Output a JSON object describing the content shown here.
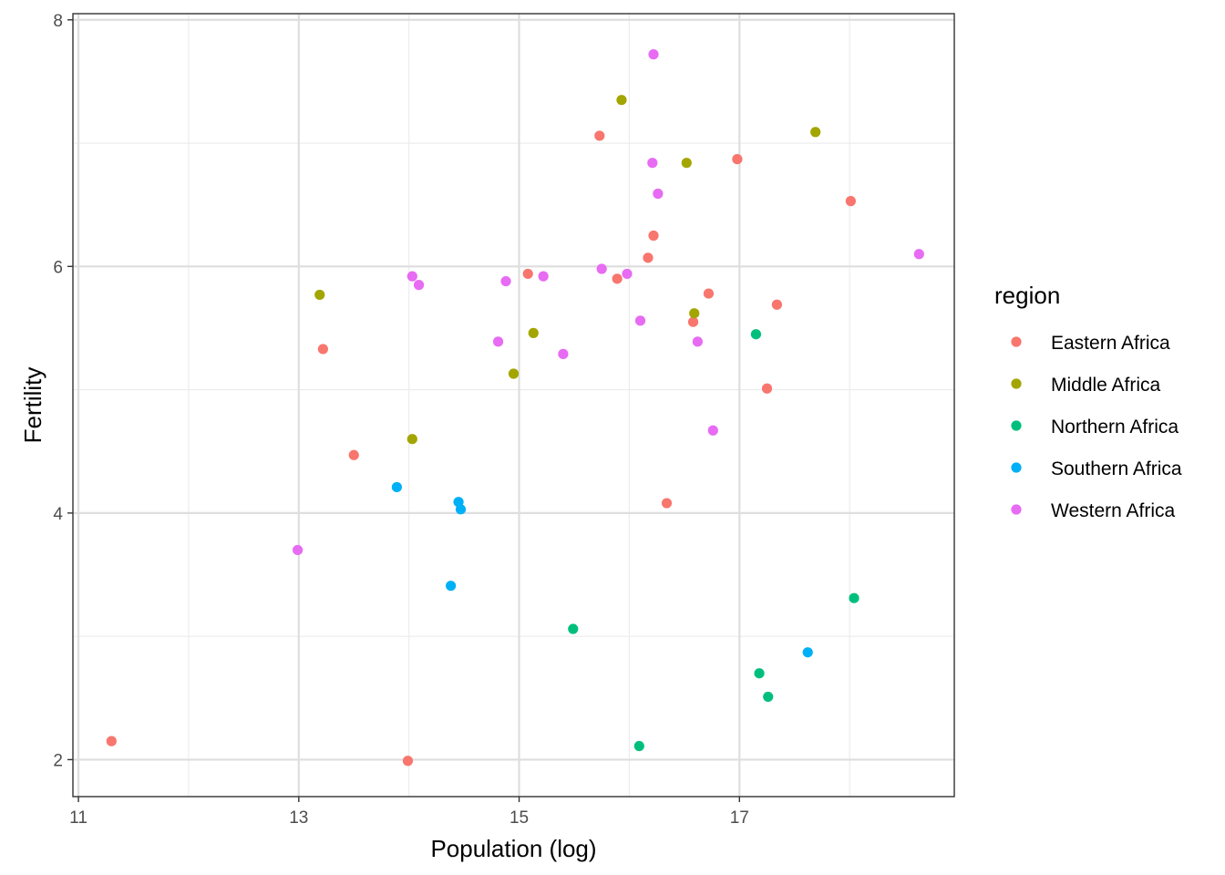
{
  "chart_data": {
    "type": "scatter",
    "xlabel": "Population (log)",
    "ylabel": "Fertility",
    "xlim": [
      10.95,
      18.95
    ],
    "ylim": [
      1.7,
      8.05
    ],
    "x_ticks": [
      11,
      13,
      15,
      17
    ],
    "x_tick_labels": [
      "11",
      "13",
      "15",
      "17"
    ],
    "y_ticks": [
      2,
      4,
      6,
      8
    ],
    "y_tick_labels": [
      "2",
      "4",
      "6",
      "8"
    ],
    "x_minor_grid": [
      12,
      14,
      16,
      18
    ],
    "y_minor_grid": [
      3,
      5,
      7
    ],
    "grid": true,
    "legend_title": "region",
    "legend_position": "right",
    "series": [
      {
        "name": "Eastern Africa",
        "color": "#F8766D",
        "points": [
          [
            11.3,
            2.15
          ],
          [
            13.99,
            1.99
          ],
          [
            13.22,
            5.33
          ],
          [
            13.5,
            4.47
          ],
          [
            15.08,
            5.94
          ],
          [
            15.73,
            7.06
          ],
          [
            15.89,
            5.9
          ],
          [
            16.17,
            6.07
          ],
          [
            16.22,
            6.25
          ],
          [
            16.34,
            4.08
          ],
          [
            16.58,
            5.55
          ],
          [
            16.72,
            5.78
          ],
          [
            16.98,
            6.87
          ],
          [
            17.25,
            5.01
          ],
          [
            17.34,
            5.69
          ],
          [
            18.01,
            6.53
          ]
        ]
      },
      {
        "name": "Middle Africa",
        "color": "#A3A500",
        "points": [
          [
            13.19,
            5.77
          ],
          [
            14.03,
            4.6
          ],
          [
            14.95,
            5.13
          ],
          [
            15.13,
            5.46
          ],
          [
            15.93,
            7.35
          ],
          [
            16.52,
            6.84
          ],
          [
            16.59,
            5.62
          ],
          [
            17.69,
            7.09
          ]
        ]
      },
      {
        "name": "Northern Africa",
        "color": "#00BF7D",
        "points": [
          [
            15.49,
            3.06
          ],
          [
            16.09,
            2.11
          ],
          [
            17.15,
            5.45
          ],
          [
            17.18,
            2.7
          ],
          [
            17.26,
            2.51
          ],
          [
            18.04,
            3.31
          ]
        ]
      },
      {
        "name": "Southern Africa",
        "color": "#00B0F6",
        "points": [
          [
            13.89,
            4.21
          ],
          [
            14.38,
            3.41
          ],
          [
            14.45,
            4.09
          ],
          [
            14.47,
            4.03
          ],
          [
            17.62,
            2.87
          ]
        ]
      },
      {
        "name": "Western Africa",
        "color": "#E76BF3",
        "points": [
          [
            12.99,
            3.7
          ],
          [
            14.03,
            5.92
          ],
          [
            14.09,
            5.85
          ],
          [
            14.81,
            5.39
          ],
          [
            14.88,
            5.88
          ],
          [
            15.22,
            5.92
          ],
          [
            15.4,
            5.29
          ],
          [
            15.75,
            5.98
          ],
          [
            15.98,
            5.94
          ],
          [
            16.1,
            5.56
          ],
          [
            16.21,
            6.84
          ],
          [
            16.22,
            7.72
          ],
          [
            16.26,
            6.59
          ],
          [
            16.62,
            5.39
          ],
          [
            16.76,
            4.67
          ],
          [
            18.63,
            6.1
          ]
        ]
      }
    ]
  }
}
